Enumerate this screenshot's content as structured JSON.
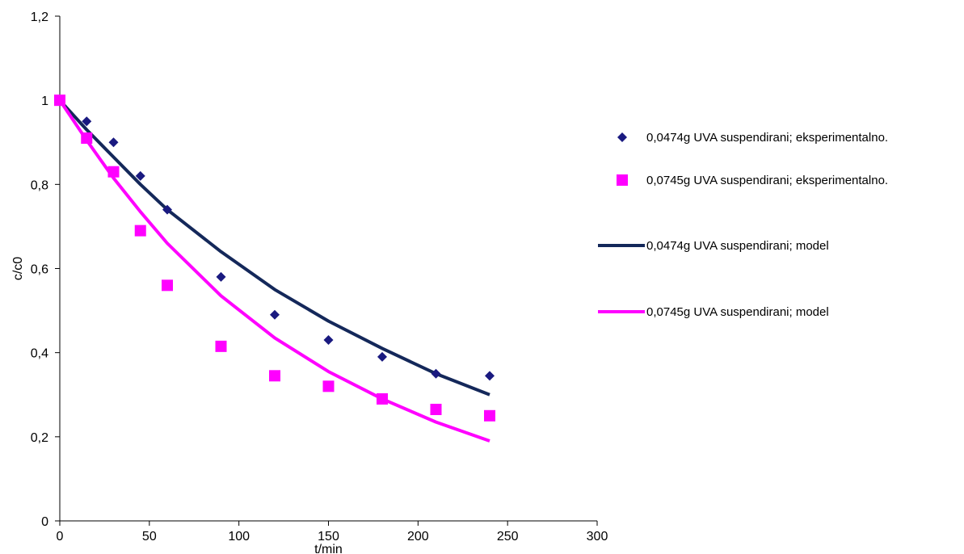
{
  "chart_data": {
    "type": "scatter",
    "xlabel": "t/min",
    "ylabel": "c/c0",
    "xlim": [
      0,
      300
    ],
    "ylim": [
      0,
      1.2
    ],
    "xticks": [
      0,
      50,
      100,
      150,
      200,
      250,
      300
    ],
    "yticks": [
      0,
      0.2,
      0.4,
      0.6,
      0.8,
      1,
      1.2
    ],
    "xtick_labels": [
      "0",
      "50",
      "100",
      "150",
      "200",
      "250",
      "300"
    ],
    "ytick_labels": [
      "0",
      "0,2",
      "0,4",
      "0,6",
      "0,8",
      "1",
      "1,2"
    ],
    "grid": false,
    "legend_position": "right",
    "series": [
      {
        "name": "0,0474g UVA suspendirani; eksperimentalno.",
        "kind": "markers",
        "marker": "diamond",
        "color": "#1a1a80",
        "x": [
          0,
          15,
          30,
          45,
          60,
          90,
          120,
          150,
          180,
          210,
          240
        ],
        "y": [
          1.0,
          0.95,
          0.9,
          0.82,
          0.74,
          0.58,
          0.49,
          0.43,
          0.39,
          0.35,
          0.345
        ]
      },
      {
        "name": "0,0745g UVA suspendirani; eksperimentalno.",
        "kind": "markers",
        "marker": "square",
        "color": "#ff00ff",
        "x": [
          0,
          15,
          30,
          45,
          60,
          90,
          120,
          150,
          180,
          210,
          240
        ],
        "y": [
          1.0,
          0.91,
          0.83,
          0.69,
          0.56,
          0.415,
          0.345,
          0.32,
          0.29,
          0.265,
          0.25
        ]
      },
      {
        "name": "0,0474g UVA suspendirani; model",
        "kind": "line",
        "color": "#14285a",
        "x": [
          0,
          15,
          30,
          45,
          60,
          90,
          120,
          150,
          180,
          210,
          240
        ],
        "y": [
          1.0,
          0.93,
          0.865,
          0.8,
          0.74,
          0.64,
          0.55,
          0.475,
          0.41,
          0.35,
          0.3
        ]
      },
      {
        "name": "0,0745g UVA suspendirani; model",
        "kind": "line",
        "color": "#ff00ff",
        "x": [
          0,
          15,
          30,
          45,
          60,
          90,
          120,
          150,
          180,
          210,
          240
        ],
        "y": [
          1.0,
          0.905,
          0.815,
          0.735,
          0.66,
          0.535,
          0.435,
          0.355,
          0.29,
          0.235,
          0.19
        ]
      }
    ]
  }
}
